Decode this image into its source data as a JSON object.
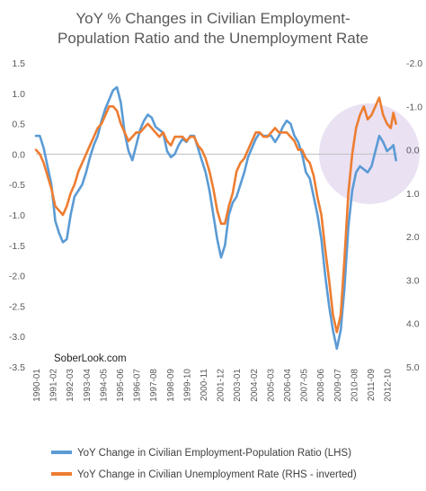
{
  "chart_data": {
    "type": "line",
    "title_lines": [
      "YoY % Changes in Civilian Employment-",
      "Population Ratio and the Unemployment Rate"
    ],
    "watermark": "SoberLook.com",
    "left_axis": {
      "ticks": [
        1.5,
        1.0,
        0.5,
        0.0,
        -0.5,
        -1.0,
        -1.5,
        -2.0,
        -2.5,
        -3.0,
        -3.5
      ],
      "tick_labels": [
        "1.5",
        "1.0",
        "0.5",
        "0.0",
        "-0.5",
        "-1.0",
        "-1.5",
        "-2.0",
        "-2.5",
        "-3.0",
        "-3.5"
      ],
      "range": [
        -3.5,
        1.5
      ]
    },
    "right_axis": {
      "inverted": true,
      "ticks": [
        -2.0,
        -1.0,
        0.0,
        1.0,
        2.0,
        3.0,
        4.0,
        5.0
      ],
      "tick_labels": [
        "-2.0",
        "-1.0",
        "0.0",
        "1.0",
        "2.0",
        "3.0",
        "4.0",
        "5.0"
      ],
      "range": [
        -2.0,
        5.0
      ]
    },
    "x_tick_labels": [
      "1990-01",
      "1991-02",
      "1992-03",
      "1993-04",
      "1994-05",
      "1995-06",
      "1996-07",
      "1997-08",
      "1998-09",
      "1999-10",
      "2000-11",
      "2001-12",
      "2003-01",
      "2004-02",
      "2005-03",
      "2006-04",
      "2007-05",
      "2008-06",
      "2009-07",
      "2010-08",
      "2011-09",
      "2012-10"
    ],
    "x_range": [
      "1990-01",
      "2013-06"
    ],
    "grid": false,
    "legend_position": "bottom",
    "series": [
      {
        "name": "YoY Change in Civilian Employment-Population Ratio (LHS)",
        "axis": "left",
        "color": "#5b9bd5",
        "points": [
          [
            "1990-01",
            0.3
          ],
          [
            "1990-04",
            0.3
          ],
          [
            "1990-07",
            0.1
          ],
          [
            "1990-10",
            -0.2
          ],
          [
            "1991-01",
            -0.5
          ],
          [
            "1991-04",
            -1.1
          ],
          [
            "1991-07",
            -1.3
          ],
          [
            "1991-10",
            -1.45
          ],
          [
            "1992-01",
            -1.4
          ],
          [
            "1992-04",
            -1.0
          ],
          [
            "1992-07",
            -0.7
          ],
          [
            "1992-10",
            -0.6
          ],
          [
            "1993-01",
            -0.5
          ],
          [
            "1993-04",
            -0.3
          ],
          [
            "1993-07",
            -0.05
          ],
          [
            "1993-10",
            0.15
          ],
          [
            "1994-01",
            0.3
          ],
          [
            "1994-04",
            0.55
          ],
          [
            "1994-07",
            0.75
          ],
          [
            "1994-10",
            0.9
          ],
          [
            "1995-01",
            1.05
          ],
          [
            "1995-04",
            1.1
          ],
          [
            "1995-07",
            0.85
          ],
          [
            "1995-10",
            0.35
          ],
          [
            "1996-01",
            0.05
          ],
          [
            "1996-04",
            -0.1
          ],
          [
            "1996-07",
            0.15
          ],
          [
            "1996-10",
            0.4
          ],
          [
            "1997-01",
            0.55
          ],
          [
            "1997-04",
            0.65
          ],
          [
            "1997-07",
            0.6
          ],
          [
            "1997-10",
            0.45
          ],
          [
            "1998-01",
            0.4
          ],
          [
            "1998-04",
            0.35
          ],
          [
            "1998-07",
            0.05
          ],
          [
            "1998-10",
            -0.05
          ],
          [
            "1999-01",
            0.0
          ],
          [
            "1999-04",
            0.15
          ],
          [
            "1999-07",
            0.25
          ],
          [
            "1999-10",
            0.2
          ],
          [
            "2000-01",
            0.3
          ],
          [
            "2000-04",
            0.3
          ],
          [
            "2000-07",
            0.1
          ],
          [
            "2000-10",
            -0.1
          ],
          [
            "2001-01",
            -0.3
          ],
          [
            "2001-04",
            -0.6
          ],
          [
            "2001-07",
            -1.0
          ],
          [
            "2001-10",
            -1.4
          ],
          [
            "2002-01",
            -1.7
          ],
          [
            "2002-04",
            -1.5
          ],
          [
            "2002-07",
            -1.0
          ],
          [
            "2002-10",
            -0.8
          ],
          [
            "2003-01",
            -0.7
          ],
          [
            "2003-04",
            -0.5
          ],
          [
            "2003-07",
            -0.3
          ],
          [
            "2003-10",
            -0.05
          ],
          [
            "2004-01",
            0.1
          ],
          [
            "2004-04",
            0.25
          ],
          [
            "2004-07",
            0.35
          ],
          [
            "2004-10",
            0.3
          ],
          [
            "2005-01",
            0.3
          ],
          [
            "2005-04",
            0.3
          ],
          [
            "2005-07",
            0.2
          ],
          [
            "2005-10",
            0.3
          ],
          [
            "2006-01",
            0.45
          ],
          [
            "2006-04",
            0.55
          ],
          [
            "2006-07",
            0.5
          ],
          [
            "2006-10",
            0.3
          ],
          [
            "2007-01",
            0.2
          ],
          [
            "2007-04",
            0.0
          ],
          [
            "2007-07",
            -0.3
          ],
          [
            "2007-10",
            -0.4
          ],
          [
            "2008-01",
            -0.7
          ],
          [
            "2008-04",
            -1.0
          ],
          [
            "2008-07",
            -1.4
          ],
          [
            "2008-10",
            -2.0
          ],
          [
            "2009-01",
            -2.5
          ],
          [
            "2009-04",
            -2.9
          ],
          [
            "2009-07",
            -3.2
          ],
          [
            "2009-10",
            -2.9
          ],
          [
            "2010-01",
            -2.2
          ],
          [
            "2010-04",
            -1.2
          ],
          [
            "2010-07",
            -0.6
          ],
          [
            "2010-10",
            -0.3
          ],
          [
            "2011-01",
            -0.2
          ],
          [
            "2011-04",
            -0.25
          ],
          [
            "2011-07",
            -0.3
          ],
          [
            "2011-10",
            -0.2
          ],
          [
            "2012-01",
            0.05
          ],
          [
            "2012-04",
            0.3
          ],
          [
            "2012-07",
            0.2
          ],
          [
            "2012-10",
            0.05
          ],
          [
            "2013-01",
            0.1
          ],
          [
            "2013-03",
            0.15
          ],
          [
            "2013-05",
            -0.1
          ]
        ]
      },
      {
        "name": "YoY Change in Civilian Unemployment Rate (RHS - inverted)",
        "axis": "right",
        "color": "#ed7d31",
        "points": [
          [
            "1990-01",
            0.0
          ],
          [
            "1990-04",
            0.1
          ],
          [
            "1990-07",
            0.3
          ],
          [
            "1990-10",
            0.6
          ],
          [
            "1991-01",
            0.9
          ],
          [
            "1991-04",
            1.3
          ],
          [
            "1991-07",
            1.4
          ],
          [
            "1991-10",
            1.5
          ],
          [
            "1992-01",
            1.3
          ],
          [
            "1992-04",
            1.0
          ],
          [
            "1992-07",
            0.8
          ],
          [
            "1992-10",
            0.5
          ],
          [
            "1993-01",
            0.3
          ],
          [
            "1993-04",
            0.1
          ],
          [
            "1993-07",
            -0.1
          ],
          [
            "1993-10",
            -0.3
          ],
          [
            "1994-01",
            -0.5
          ],
          [
            "1994-04",
            -0.6
          ],
          [
            "1994-07",
            -0.8
          ],
          [
            "1994-10",
            -1.0
          ],
          [
            "1995-01",
            -1.0
          ],
          [
            "1995-04",
            -0.9
          ],
          [
            "1995-07",
            -0.6
          ],
          [
            "1995-10",
            -0.4
          ],
          [
            "1996-01",
            -0.2
          ],
          [
            "1996-04",
            -0.3
          ],
          [
            "1996-07",
            -0.4
          ],
          [
            "1996-10",
            -0.4
          ],
          [
            "1997-01",
            -0.5
          ],
          [
            "1997-04",
            -0.6
          ],
          [
            "1997-07",
            -0.5
          ],
          [
            "1997-10",
            -0.4
          ],
          [
            "1998-01",
            -0.3
          ],
          [
            "1998-04",
            -0.4
          ],
          [
            "1998-07",
            -0.2
          ],
          [
            "1998-10",
            -0.1
          ],
          [
            "1999-01",
            -0.3
          ],
          [
            "1999-04",
            -0.3
          ],
          [
            "1999-07",
            -0.3
          ],
          [
            "1999-10",
            -0.2
          ],
          [
            "2000-01",
            -0.3
          ],
          [
            "2000-04",
            -0.3
          ],
          [
            "2000-07",
            -0.1
          ],
          [
            "2000-10",
            0.0
          ],
          [
            "2001-01",
            0.2
          ],
          [
            "2001-04",
            0.5
          ],
          [
            "2001-07",
            0.9
          ],
          [
            "2001-10",
            1.4
          ],
          [
            "2002-01",
            1.7
          ],
          [
            "2002-04",
            1.7
          ],
          [
            "2002-07",
            1.3
          ],
          [
            "2002-10",
            1.0
          ],
          [
            "2003-01",
            0.5
          ],
          [
            "2003-04",
            0.3
          ],
          [
            "2003-07",
            0.2
          ],
          [
            "2003-10",
            0.0
          ],
          [
            "2004-01",
            -0.2
          ],
          [
            "2004-04",
            -0.4
          ],
          [
            "2004-07",
            -0.4
          ],
          [
            "2004-10",
            -0.3
          ],
          [
            "2005-01",
            -0.3
          ],
          [
            "2005-04",
            -0.4
          ],
          [
            "2005-07",
            -0.5
          ],
          [
            "2005-10",
            -0.4
          ],
          [
            "2006-01",
            -0.4
          ],
          [
            "2006-04",
            -0.4
          ],
          [
            "2006-07",
            -0.3
          ],
          [
            "2006-10",
            -0.2
          ],
          [
            "2007-01",
            0.0
          ],
          [
            "2007-04",
            0.0
          ],
          [
            "2007-07",
            0.2
          ],
          [
            "2007-10",
            0.3
          ],
          [
            "2008-01",
            0.6
          ],
          [
            "2008-04",
            1.1
          ],
          [
            "2008-07",
            1.5
          ],
          [
            "2008-10",
            2.3
          ],
          [
            "2009-01",
            3.0
          ],
          [
            "2009-04",
            3.8
          ],
          [
            "2009-07",
            4.2
          ],
          [
            "2009-10",
            3.8
          ],
          [
            "2010-01",
            2.5
          ],
          [
            "2010-04",
            1.0
          ],
          [
            "2010-07",
            0.1
          ],
          [
            "2010-10",
            -0.5
          ],
          [
            "2011-01",
            -0.8
          ],
          [
            "2011-04",
            -1.0
          ],
          [
            "2011-07",
            -0.7
          ],
          [
            "2011-10",
            -0.8
          ],
          [
            "2012-01",
            -1.0
          ],
          [
            "2012-04",
            -1.2
          ],
          [
            "2012-07",
            -0.8
          ],
          [
            "2012-10",
            -0.6
          ],
          [
            "2013-01",
            -0.5
          ],
          [
            "2013-03",
            -0.85
          ],
          [
            "2013-05",
            -0.6
          ]
        ]
      }
    ],
    "highlight": {
      "shape": "circle",
      "color": "#b393d3"
    }
  }
}
